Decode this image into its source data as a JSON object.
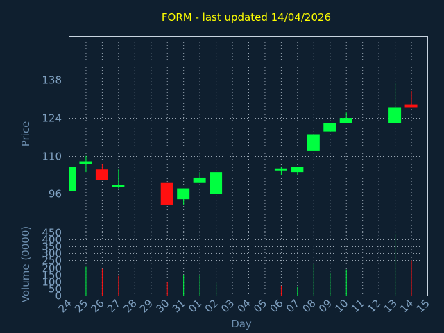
{
  "chart_data": [
    {
      "type": "candlestick",
      "title": "FORM - last updated 14/04/2026",
      "ylabel": "Price",
      "ylim": [
        82,
        154
      ],
      "yticks": [
        96,
        110,
        124,
        138
      ],
      "grid": true,
      "colors": {
        "up": "#00ff40",
        "down": "#ff1010",
        "title": "#ffff00",
        "axis_text": "#7fa0c0",
        "background": "#0f1f2f"
      },
      "candles": [
        {
          "date": "24",
          "open": 97,
          "high": 106,
          "low": 97,
          "close": 106
        },
        {
          "date": "25",
          "open": 107,
          "high": 110,
          "low": 104,
          "close": 108
        },
        {
          "date": "26",
          "open": 105,
          "high": 107,
          "low": 101,
          "close": 101
        },
        {
          "date": "27",
          "open": 99,
          "high": 105,
          "low": 98,
          "close": 99
        },
        {
          "date": "30",
          "open": 100,
          "high": 100,
          "low": 92,
          "close": 92
        },
        {
          "date": "31",
          "open": 94,
          "high": 98,
          "low": 92,
          "close": 98
        },
        {
          "date": "01",
          "open": 100,
          "high": 104,
          "low": 100,
          "close": 102
        },
        {
          "date": "02",
          "open": 96,
          "high": 104,
          "low": 96,
          "close": 104
        },
        {
          "date": "06",
          "open": 105,
          "high": 106,
          "low": 103,
          "close": 105
        },
        {
          "date": "07",
          "open": 104,
          "high": 106,
          "low": 103,
          "close": 106
        },
        {
          "date": "08",
          "open": 112,
          "high": 118,
          "low": 112,
          "close": 118
        },
        {
          "date": "09",
          "open": 119,
          "high": 122,
          "low": 119,
          "close": 122
        },
        {
          "date": "10",
          "open": 122,
          "high": 126,
          "low": 122,
          "close": 124
        },
        {
          "date": "13",
          "open": 122,
          "high": 137,
          "low": 122,
          "close": 128
        },
        {
          "date": "14",
          "open": 129,
          "high": 134,
          "low": 128,
          "close": 128
        }
      ]
    },
    {
      "type": "bar",
      "ylabel": "Volume (0000)",
      "ylim": [
        0,
        450
      ],
      "yticks": [
        0,
        50,
        100,
        150,
        200,
        250,
        300,
        350,
        400,
        450
      ],
      "xlabel": "Day",
      "x_ticks": [
        "24",
        "25",
        "26",
        "27",
        "28",
        "29",
        "30",
        "31",
        "01",
        "02",
        "03",
        "04",
        "05",
        "06",
        "07",
        "08",
        "09",
        "10",
        "11",
        "12",
        "13",
        "14",
        "15"
      ],
      "values": [
        {
          "date": "24",
          "value": 0
        },
        {
          "date": "25",
          "value": 205,
          "dir": "up"
        },
        {
          "date": "26",
          "value": 190,
          "dir": "down"
        },
        {
          "date": "27",
          "value": 140,
          "dir": "down"
        },
        {
          "date": "30",
          "value": 95,
          "dir": "down"
        },
        {
          "date": "31",
          "value": 145,
          "dir": "up"
        },
        {
          "date": "01",
          "value": 145,
          "dir": "up"
        },
        {
          "date": "02",
          "value": 90,
          "dir": "up"
        },
        {
          "date": "06",
          "value": 70,
          "dir": "down"
        },
        {
          "date": "07",
          "value": 65,
          "dir": "up"
        },
        {
          "date": "08",
          "value": 225,
          "dir": "up"
        },
        {
          "date": "09",
          "value": 160,
          "dir": "up"
        },
        {
          "date": "10",
          "value": 185,
          "dir": "up"
        },
        {
          "date": "13",
          "value": 440,
          "dir": "up"
        },
        {
          "date": "14",
          "value": 250,
          "dir": "down"
        }
      ]
    }
  ]
}
